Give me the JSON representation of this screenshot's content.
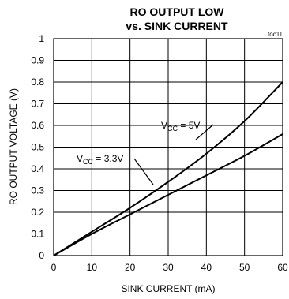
{
  "chart_data": {
    "type": "line",
    "title_line1": "RO OUTPUT LOW",
    "title_line2": "vs. SINK CURRENT",
    "corner_note": "toc11",
    "xlabel": "SINK CURRENT (mA)",
    "ylabel": "RO OUTPUT VOLTAGE (V)",
    "xlim": [
      0,
      60
    ],
    "ylim": [
      0,
      1
    ],
    "xticks": [
      "0",
      "10",
      "20",
      "30",
      "40",
      "50",
      "60"
    ],
    "yticks": [
      "0",
      "0.1",
      "0.2",
      "0.3",
      "0.4",
      "0.5",
      "0.6",
      "0.7",
      "0.8",
      "0.9",
      "1"
    ],
    "grid": true,
    "series": [
      {
        "name": "VCC = 5V",
        "label_main": "V",
        "label_sub": "CC",
        "label_rest": " = 5V",
        "x": [
          0,
          10,
          20,
          30,
          40,
          50,
          60
        ],
        "y": [
          0,
          0.11,
          0.22,
          0.34,
          0.47,
          0.62,
          0.8
        ]
      },
      {
        "name": "VCC = 3.3V",
        "label_main": "V",
        "label_sub": "CC",
        "label_rest": " = 3.3V",
        "x": [
          0,
          10,
          20,
          30,
          40,
          50,
          60
        ],
        "y": [
          0,
          0.1,
          0.19,
          0.28,
          0.37,
          0.46,
          0.56
        ]
      }
    ]
  }
}
